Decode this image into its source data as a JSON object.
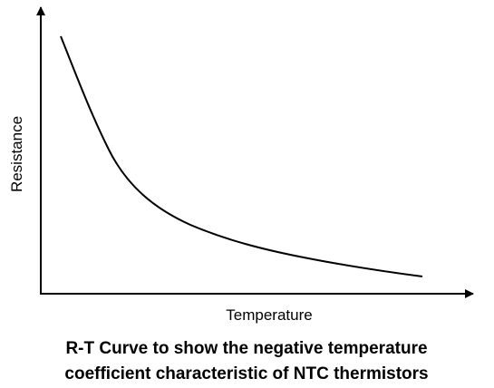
{
  "axes": {
    "x_label": "Temperature",
    "y_label": "Resistance"
  },
  "caption": {
    "lines": [
      "R-T Curve to show the negative temperature",
      "coefficient characteristic of NTC thermistors"
    ]
  }
}
